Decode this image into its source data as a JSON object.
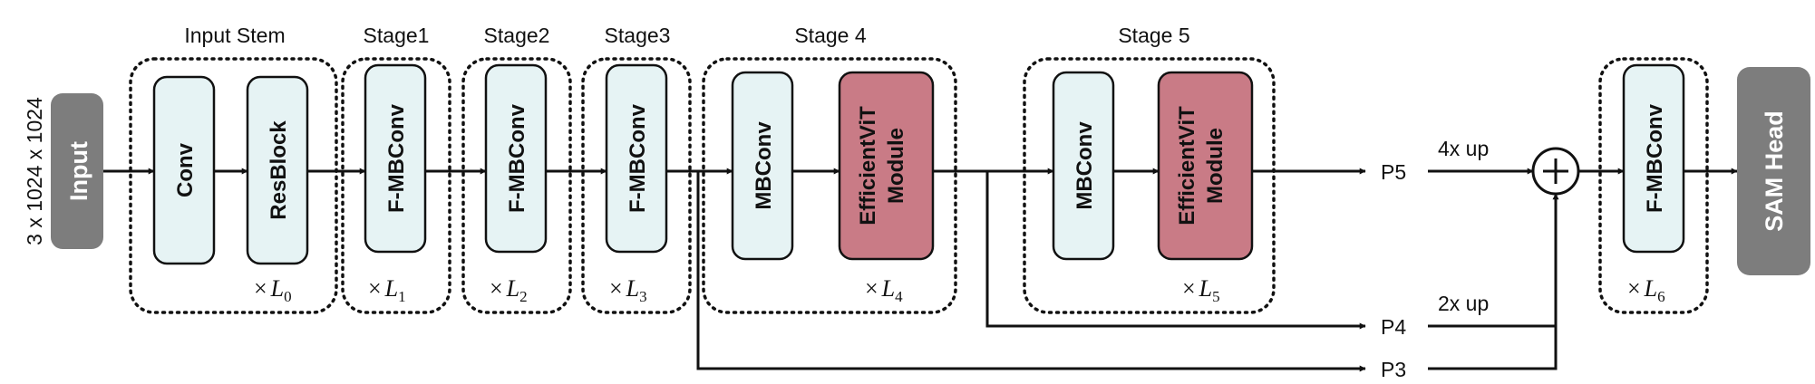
{
  "input": {
    "label": "Input",
    "size_label": "3 x 1024 x 1024"
  },
  "stages": {
    "stem": {
      "title": "Input Stem",
      "conv": "Conv",
      "resblock": "ResBlock",
      "mult": {
        "sym": "×",
        "var": "L",
        "sub": "0"
      }
    },
    "stage1": {
      "title": "Stage1",
      "block": "F-MBConv",
      "mult": {
        "sym": "×",
        "var": "L",
        "sub": "1"
      }
    },
    "stage2": {
      "title": "Stage2",
      "block": "F-MBConv",
      "mult": {
        "sym": "×",
        "var": "L",
        "sub": "2"
      }
    },
    "stage3": {
      "title": "Stage3",
      "block": "F-MBConv",
      "mult": {
        "sym": "×",
        "var": "L",
        "sub": "3"
      }
    },
    "stage4": {
      "title": "Stage 4",
      "mbconv": "MBConv",
      "vit_line1": "EfficientViT",
      "vit_line2": "Module",
      "mult": {
        "sym": "×",
        "var": "L",
        "sub": "4"
      }
    },
    "stage5": {
      "title": "Stage 5",
      "mbconv": "MBConv",
      "vit_line1": "EfficientViT",
      "vit_line2": "Module",
      "mult": {
        "sym": "×",
        "var": "L",
        "sub": "5"
      }
    }
  },
  "outputs": {
    "p5": "P5",
    "p4": "P4",
    "p3": "P3",
    "up4": "4x up",
    "up2": "2x up"
  },
  "neck": {
    "block": "F-MBConv",
    "mult": {
      "sym": "×",
      "var": "L",
      "sub": "6"
    }
  },
  "head": {
    "label": "SAM Head"
  },
  "colors": {
    "light_block": "#e6f3f4",
    "vit_block": "#c97b86",
    "io_block": "#7d7d7d",
    "line": "#111111"
  }
}
